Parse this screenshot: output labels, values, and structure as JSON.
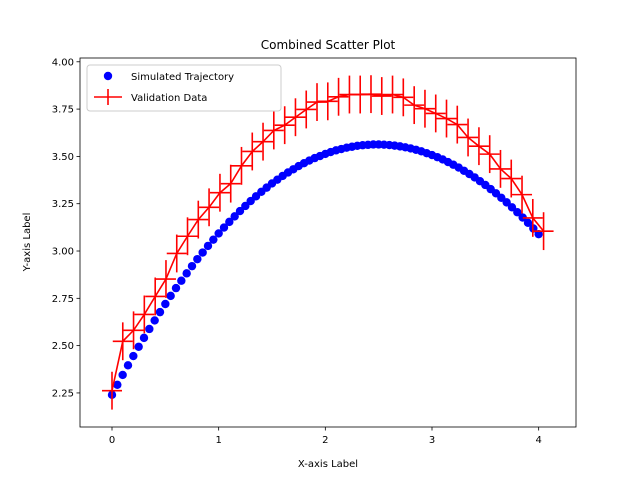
{
  "chart_data": {
    "type": "scatter",
    "title": "Combined Scatter Plot",
    "xlabel": "X-axis Label",
    "ylabel": "Y-axis Label",
    "xlim": [
      -0.3,
      4.35
    ],
    "ylim": [
      2.07,
      4.02
    ],
    "xticks": [
      0,
      1,
      2,
      3,
      4
    ],
    "xtick_labels": [
      "0",
      "1",
      "2",
      "3",
      "4"
    ],
    "yticks": [
      2.25,
      2.5,
      2.75,
      3.0,
      3.25,
      3.5,
      3.75,
      4.0
    ],
    "ytick_labels": [
      "2.25",
      "2.50",
      "2.75",
      "3.00",
      "3.25",
      "3.50",
      "3.75",
      "4.00"
    ],
    "grid": false,
    "legend_position": "top-left",
    "series": [
      {
        "name": "Simulated Trajectory",
        "style": "markers",
        "color": "#0000ff",
        "x": [
          0.0,
          0.05,
          0.1,
          0.15,
          0.2,
          0.25,
          0.3,
          0.35,
          0.4,
          0.45,
          0.5,
          0.55,
          0.6,
          0.65,
          0.7,
          0.75,
          0.8,
          0.85,
          0.9,
          0.95,
          1.0,
          1.05,
          1.1,
          1.15,
          1.2,
          1.25,
          1.3,
          1.35,
          1.4,
          1.45,
          1.5,
          1.55,
          1.6,
          1.65,
          1.7,
          1.75,
          1.8,
          1.85,
          1.9,
          1.95,
          2.0,
          2.05,
          2.1,
          2.15,
          2.2,
          2.25,
          2.3,
          2.35,
          2.4,
          2.45,
          2.5,
          2.55,
          2.6,
          2.65,
          2.7,
          2.75,
          2.8,
          2.85,
          2.9,
          2.95,
          3.0,
          3.05,
          3.1,
          3.15,
          3.2,
          3.25,
          3.3,
          3.35,
          3.4,
          3.45,
          3.5,
          3.55,
          3.6,
          3.65,
          3.7,
          3.75,
          3.8,
          3.85,
          3.9,
          3.95,
          4.0
        ],
        "y": [
          2.24,
          2.293,
          2.345,
          2.396,
          2.445,
          2.494,
          2.541,
          2.588,
          2.633,
          2.677,
          2.72,
          2.763,
          2.804,
          2.843,
          2.882,
          2.92,
          2.957,
          2.992,
          3.027,
          3.06,
          3.093,
          3.124,
          3.154,
          3.183,
          3.211,
          3.238,
          3.264,
          3.289,
          3.313,
          3.335,
          3.357,
          3.377,
          3.397,
          3.415,
          3.432,
          3.449,
          3.464,
          3.478,
          3.491,
          3.502,
          3.513,
          3.523,
          3.532,
          3.539,
          3.546,
          3.551,
          3.556,
          3.559,
          3.561,
          3.563,
          3.563,
          3.562,
          3.56,
          3.557,
          3.553,
          3.548,
          3.542,
          3.535,
          3.527,
          3.517,
          3.507,
          3.496,
          3.484,
          3.47,
          3.456,
          3.441,
          3.424,
          3.407,
          3.389,
          3.369,
          3.349,
          3.327,
          3.305,
          3.281,
          3.257,
          3.231,
          3.205,
          3.177,
          3.149,
          3.119,
          3.089
        ]
      },
      {
        "name": "Validation Data",
        "style": "line-errorbars",
        "color": "#ff0000",
        "yerr": 0.1,
        "x": [
          0.0,
          0.101,
          0.202,
          0.303,
          0.405,
          0.506,
          0.607,
          0.708,
          0.809,
          0.91,
          1.012,
          1.113,
          1.214,
          1.315,
          1.416,
          1.517,
          1.619,
          1.72,
          1.821,
          1.922,
          2.023,
          2.124,
          2.226,
          2.327,
          2.428,
          2.529,
          2.63,
          2.731,
          2.833,
          2.934,
          3.035,
          3.136,
          3.237,
          3.338,
          3.44,
          3.541,
          3.642,
          3.743,
          3.844,
          3.945,
          4.046
        ],
        "y": [
          2.262,
          2.523,
          2.581,
          2.665,
          2.76,
          2.852,
          2.987,
          3.078,
          3.166,
          3.231,
          3.308,
          3.356,
          3.45,
          3.526,
          3.578,
          3.637,
          3.665,
          3.707,
          3.748,
          3.787,
          3.791,
          3.815,
          3.827,
          3.827,
          3.829,
          3.819,
          3.827,
          3.812,
          3.771,
          3.752,
          3.727,
          3.7,
          3.668,
          3.6,
          3.554,
          3.512,
          3.434,
          3.383,
          3.298,
          3.175,
          3.105
        ]
      }
    ]
  }
}
